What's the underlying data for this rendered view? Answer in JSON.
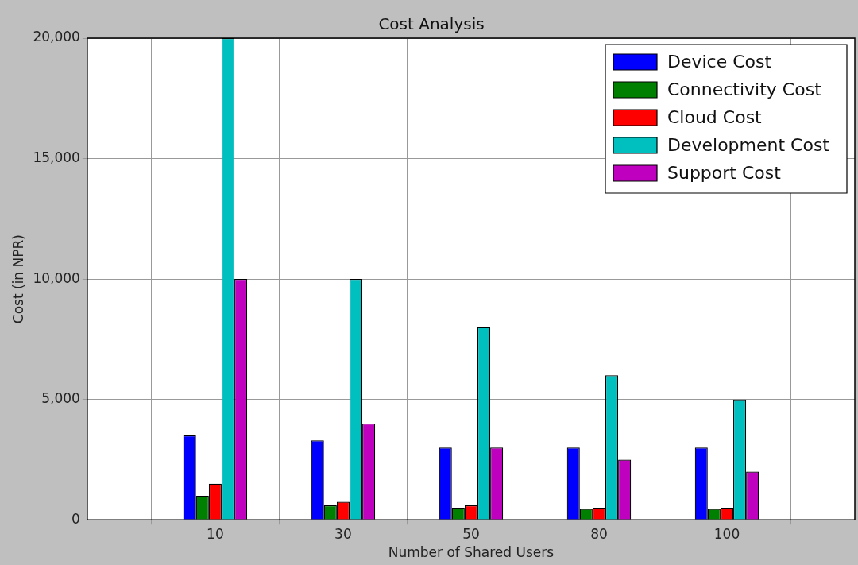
{
  "chart_data": {
    "type": "bar",
    "title": "Cost Analysis",
    "xlabel": "Number of Shared Users",
    "ylabel": "Cost (in NPR)",
    "categories": [
      "10",
      "30",
      "50",
      "80",
      "100"
    ],
    "series": [
      {
        "name": "Device Cost",
        "color": "#0000ff",
        "values": [
          3500,
          3300,
          3000,
          3000,
          3000
        ]
      },
      {
        "name": "Connectivity Cost",
        "color": "#008000",
        "values": [
          1000,
          600,
          500,
          450,
          450
        ]
      },
      {
        "name": "Cloud Cost",
        "color": "#ff0000",
        "values": [
          1500,
          750,
          600,
          500,
          500
        ]
      },
      {
        "name": "Development Cost",
        "color": "#00bfbf",
        "values": [
          20000,
          10000,
          8000,
          6000,
          5000
        ]
      },
      {
        "name": "Support Cost",
        "color": "#bf00bf",
        "values": [
          10000,
          4000,
          3000,
          2500,
          2000
        ]
      }
    ],
    "ylim": [
      0,
      20000
    ],
    "yticks": [
      0,
      {
        "value": 5000,
        "label": "5,000"
      },
      {
        "value": 10000,
        "label": "10,000"
      },
      {
        "value": 15000,
        "label": "15,000"
      },
      {
        "value": 20000,
        "label": "20,000"
      }
    ],
    "grid": true,
    "legend": "top right"
  }
}
